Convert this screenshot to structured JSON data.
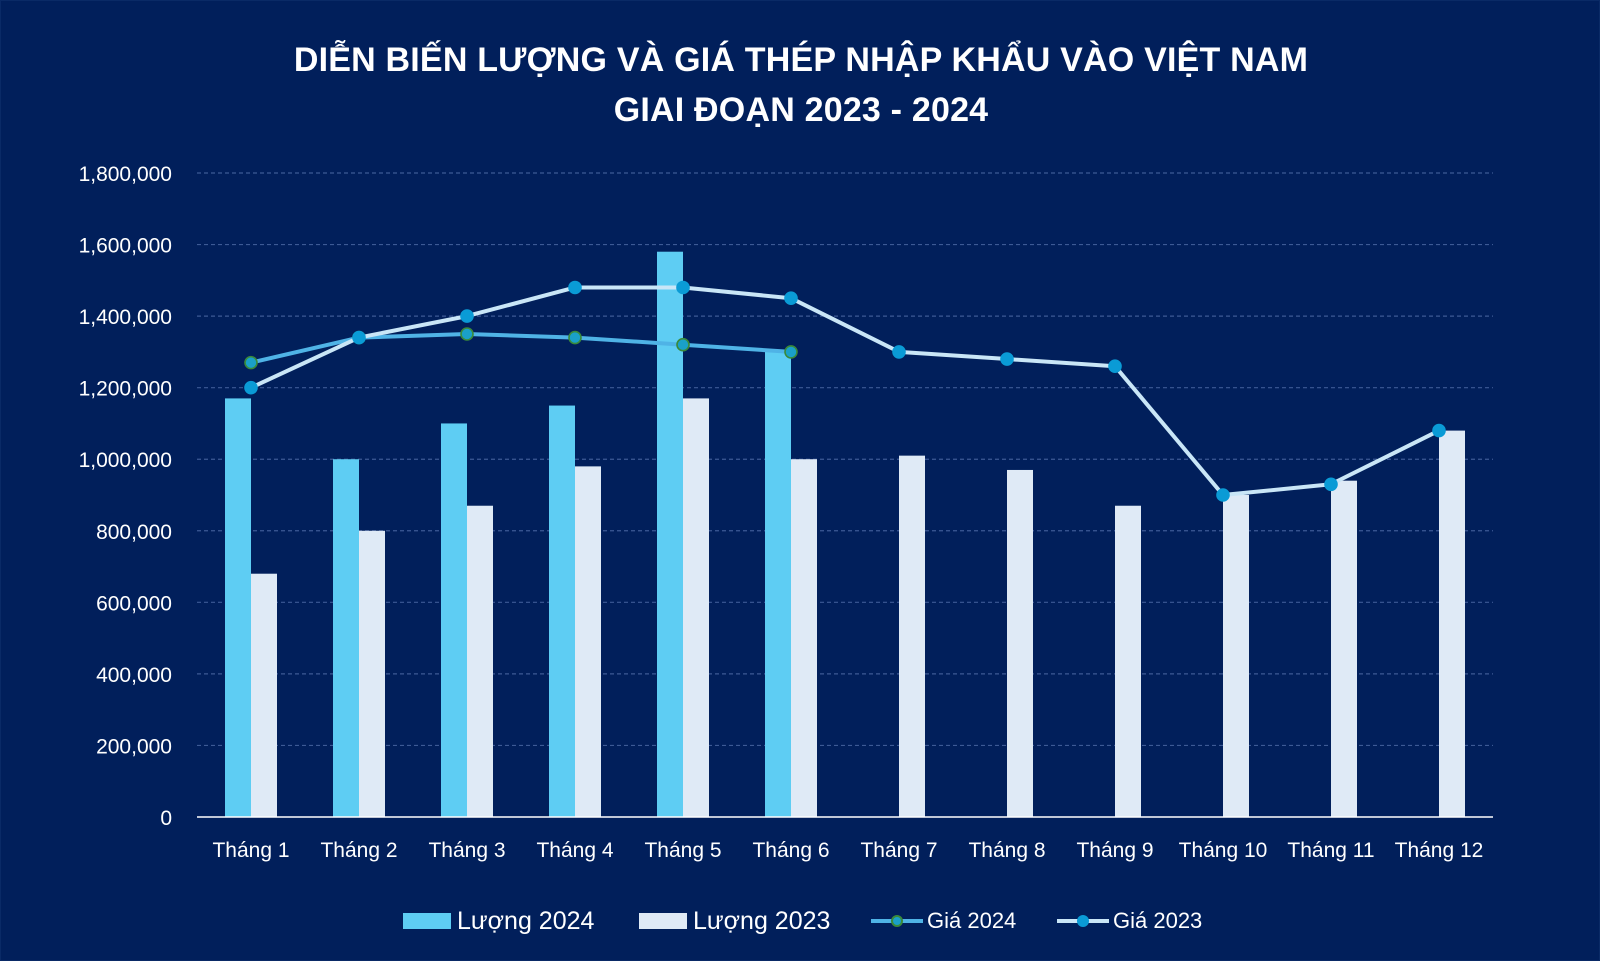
{
  "title_line1": "DIỄN BIẾN LƯỢNG VÀ GIÁ THÉP NHẬP KHẨU VÀO VIỆT NAM",
  "title_line2": "GIAI ĐOẠN 2023 - 2024",
  "colors": {
    "background": "#011f5b",
    "luong_2024": "#5ecdf3",
    "luong_2023": "#dfeaf6",
    "gia_2024_line": "#4fb3e6",
    "gia_2024_marker": "#1aa0c8",
    "gia_2024_marker_border": "#3a8a3a",
    "gia_2023_line": "#c9e6f7",
    "gia_2023_marker": "#0a9bd6",
    "grid": "#3d5a95",
    "axis": "#ffffff"
  },
  "chart_data": {
    "type": "bar",
    "title": "DIỄN BIẾN LƯỢNG VÀ GIÁ THÉP NHẬP KHẨU VÀO VIỆT NAM GIAI ĐOẠN 2023 - 2024",
    "categories": [
      "Tháng 1",
      "Tháng 2",
      "Tháng 3",
      "Tháng 4",
      "Tháng 5",
      "Tháng 6",
      "Tháng 7",
      "Tháng 8",
      "Tháng 9",
      "Tháng 10",
      "Tháng 11",
      "Tháng 12"
    ],
    "ylim": [
      0,
      1800000
    ],
    "yticks": [
      0,
      200000,
      400000,
      600000,
      800000,
      1000000,
      1200000,
      1400000,
      1600000,
      1800000
    ],
    "ytick_labels": [
      "0",
      "200,000",
      "400,000",
      "600,000",
      "800,000",
      "1,000,000",
      "1,200,000",
      "1,400,000",
      "1,600,000",
      "1,800,000"
    ],
    "grid": true,
    "legend_position": "bottom",
    "series": [
      {
        "name": "Lượng 2024",
        "kind": "bar",
        "values": [
          1170000,
          1000000,
          1100000,
          1150000,
          1580000,
          1300000,
          null,
          null,
          null,
          null,
          null,
          null
        ]
      },
      {
        "name": "Lượng 2023",
        "kind": "bar",
        "values": [
          680000,
          800000,
          870000,
          980000,
          1170000,
          1000000,
          1010000,
          970000,
          870000,
          900000,
          940000,
          1080000
        ]
      },
      {
        "name": "Giá 2024",
        "kind": "line",
        "values": [
          1270000,
          1340000,
          1350000,
          1340000,
          1320000,
          1300000,
          null,
          null,
          null,
          null,
          null,
          null
        ]
      },
      {
        "name": "Giá 2023",
        "kind": "line",
        "values": [
          1200000,
          1340000,
          1400000,
          1480000,
          1480000,
          1450000,
          1300000,
          1280000,
          1260000,
          900000,
          930000,
          1080000
        ]
      }
    ]
  }
}
